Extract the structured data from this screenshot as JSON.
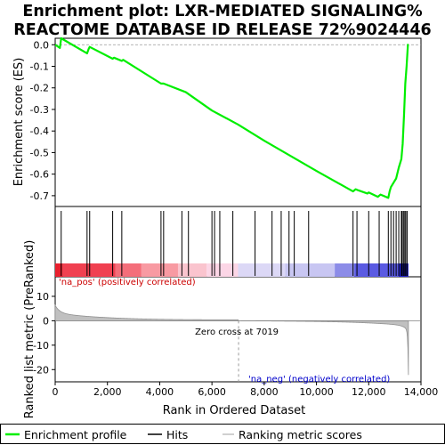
{
  "chart_data": {
    "type": "line",
    "title_line1": "Enrichment plot: LXR-MEDIATED SIGNALING%",
    "title_line2": "REACTOME DATABASE ID RELEASE 72%9024446",
    "ylabel_top": "Enrichment score (ES)",
    "ylabel_bottom": "Ranked list metric (PreRanked)",
    "xlabel": "Rank in Ordered Dataset",
    "xlim": [
      0,
      14000
    ],
    "ylim_top": [
      -0.75,
      0.03
    ],
    "ylim_bottom": [
      -25,
      18
    ],
    "x_ticks": [
      0,
      2000,
      4000,
      6000,
      8000,
      10000,
      12000,
      14000
    ],
    "x_tick_labels": [
      "0",
      "2,000",
      "4,000",
      "6,000",
      "8,000",
      "10,000",
      "12,000",
      "14,000"
    ],
    "y_ticks_top": [
      0.0,
      -0.1,
      -0.2,
      -0.3,
      -0.4,
      -0.5,
      -0.6,
      -0.7
    ],
    "y_tick_labels_top": [
      "0.0",
      "-0.1",
      "-0.2",
      "-0.3",
      "-0.4",
      "-0.5",
      "-0.6",
      "-0.7"
    ],
    "y_ticks_bottom": [
      10,
      0,
      -10,
      -20
    ],
    "y_tick_labels_bottom": [
      "10",
      "0",
      "-10",
      "-20"
    ],
    "es_profile": {
      "x": [
        0,
        180,
        230,
        1220,
        1280,
        1320,
        2200,
        2250,
        2550,
        2600,
        4050,
        4150,
        5000,
        6000,
        7000,
        8000,
        9000,
        10000,
        11400,
        11500,
        11600,
        11950,
        12000,
        12350,
        12450,
        12750,
        12800,
        12850,
        12950,
        13050,
        13150,
        13250,
        13300,
        13350,
        13400,
        13450,
        13500,
        13520
      ],
      "y": [
        0.0,
        -0.015,
        0.03,
        -0.04,
        -0.02,
        -0.01,
        -0.065,
        -0.06,
        -0.075,
        -0.07,
        -0.18,
        -0.18,
        -0.22,
        -0.305,
        -0.37,
        -0.445,
        -0.515,
        -0.585,
        -0.68,
        -0.67,
        -0.675,
        -0.69,
        -0.685,
        -0.705,
        -0.695,
        -0.71,
        -0.68,
        -0.66,
        -0.64,
        -0.62,
        -0.57,
        -0.53,
        -0.46,
        -0.33,
        -0.18,
        -0.1,
        0.0,
        0.0
      ]
    },
    "hits": [
      230,
      1220,
      1320,
      2200,
      2550,
      4050,
      4150,
      4850,
      5100,
      6000,
      6100,
      6300,
      6800,
      7650,
      8300,
      8650,
      8950,
      9150,
      9700,
      11400,
      11550,
      12000,
      12400,
      12750,
      12850,
      12950,
      13050,
      13150,
      13250,
      13280,
      13330,
      13380,
      13420,
      13470
    ],
    "zero_cross_rank": 7019,
    "annotations": {
      "pos": "'na_pos' (positively correlated)",
      "neg": "'na_neg' (negatively correlated)",
      "zero_cross": "Zero cross at 7019"
    },
    "legend": [
      {
        "label": "Enrichment profile",
        "color": "#00ee00"
      },
      {
        "label": "Hits",
        "color": "#000000"
      },
      {
        "label": "Ranking metric scores",
        "color": "#c0c0c0"
      }
    ],
    "colors": {
      "profile": "#00ee00",
      "metric_fill": "#c0c0c0",
      "pos_text": "#cc0000",
      "neg_text": "#0000cc"
    }
  }
}
